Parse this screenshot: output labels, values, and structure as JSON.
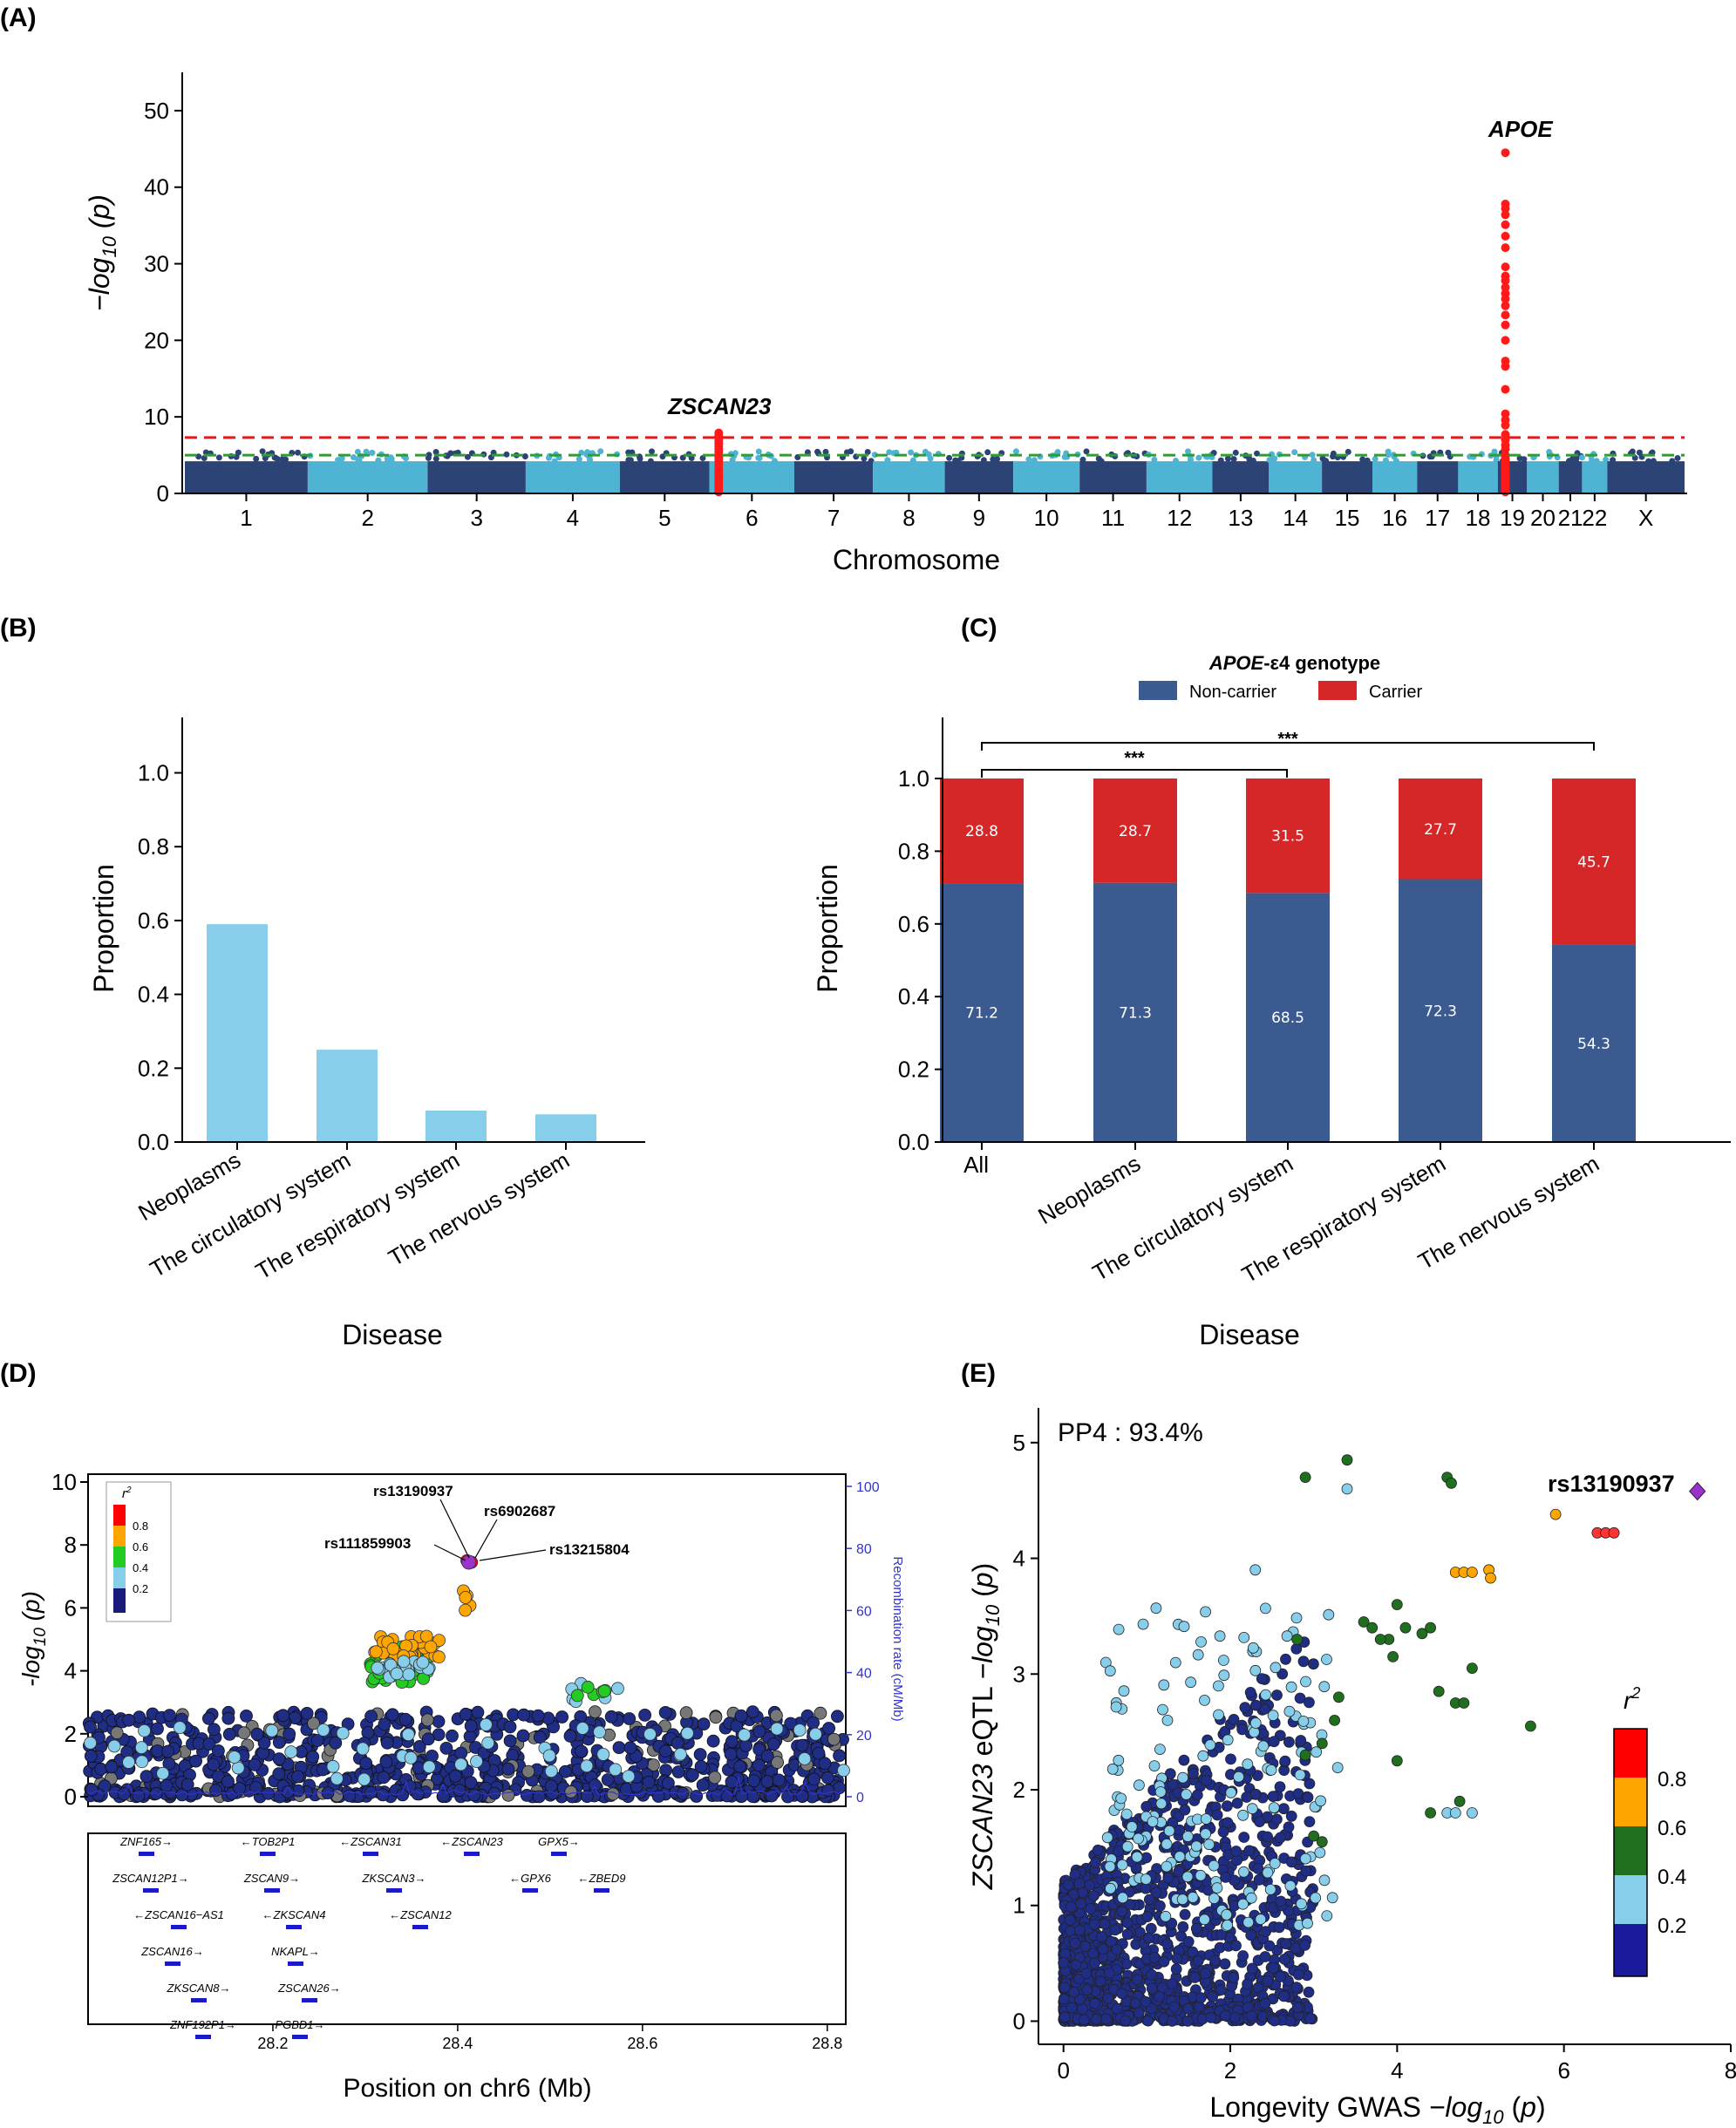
{
  "panels": {
    "A": "(A)",
    "B": "(B)",
    "C": "(C)",
    "D": "(D)",
    "E": "(E)"
  },
  "chart_data": [
    {
      "id": "A",
      "type": "scatter",
      "title": "",
      "xlabel": "Chromosome",
      "ylabel": "−log10 (p)",
      "ylim": [
        0,
        55
      ],
      "yticks": [
        "0",
        "10",
        "20",
        "30",
        "40",
        "50"
      ],
      "categories": [
        "1",
        "2",
        "3",
        "4",
        "5",
        "6",
        "7",
        "8",
        "9",
        "10",
        "11",
        "12",
        "13",
        "14",
        "15",
        "16",
        "17",
        "18",
        "19",
        "20",
        "21",
        "22",
        "X"
      ],
      "thresholds": [
        7.3,
        5
      ],
      "annotations": [
        "ZSCAN23",
        "APOE"
      ],
      "peaks": [
        {
          "chromosome": "6",
          "max_y": 8
        },
        {
          "chromosome": "19",
          "max_y": 44.5
        }
      ]
    },
    {
      "id": "B",
      "type": "bar",
      "xlabel": "Disease",
      "ylabel": "Proportion",
      "ylim": [
        0,
        1.15
      ],
      "yticks": [
        "0.0",
        "0.2",
        "0.4",
        "0.6",
        "0.8",
        "1.0"
      ],
      "categories": [
        "Neoplasms",
        "The circulatory system",
        "The respiratory system",
        "The nervous system"
      ],
      "values": [
        0.59,
        0.25,
        0.085,
        0.075
      ],
      "color": "#87ceeb"
    },
    {
      "id": "C",
      "type": "bar",
      "xlabel": "Disease",
      "ylabel": "Proportion",
      "ylim": [
        0,
        1.0
      ],
      "yticks": [
        "0.0",
        "0.2",
        "0.4",
        "0.6",
        "0.8",
        "1.0"
      ],
      "legend_title_gene": "APOE",
      "legend_title_rest": "-ε4 genotype",
      "categories": [
        "All",
        "Neoplasms",
        "The circulatory system",
        "The respiratory system",
        "The nervous system"
      ],
      "series": [
        {
          "name": "Non-carrier",
          "color": "#3b5a8f",
          "values": [
            71.2,
            71.3,
            68.5,
            72.3,
            54.3
          ],
          "labels": [
            "71.2",
            "71.3",
            "68.5",
            "72.3",
            "54.3"
          ]
        },
        {
          "name": "Carrier",
          "color": "#d62728",
          "values": [
            28.8,
            28.7,
            31.5,
            27.7,
            45.7
          ],
          "labels": [
            "28.8",
            "28.7",
            "31.5",
            "27.7",
            "45.7"
          ]
        }
      ],
      "significance": [
        "***",
        "***"
      ]
    },
    {
      "id": "D",
      "type": "scatter",
      "xlabel": "Position on chr6 (Mb)",
      "ylabel": "-log10 (p)",
      "y2label": "Recombination rate (cM/Mb)",
      "ylim": [
        0,
        10
      ],
      "y2lim": [
        0,
        100
      ],
      "xlim": [
        28.0,
        28.82
      ],
      "yticks": [
        "0",
        "2",
        "4",
        "6",
        "8",
        "10"
      ],
      "y2ticks": [
        "0",
        "20",
        "40",
        "60",
        "80",
        "100"
      ],
      "xticks": [
        "28.2",
        "28.4",
        "28.6",
        "28.8"
      ],
      "legend_title": "r2",
      "legend_ticks": [
        "0.8",
        "0.6",
        "0.4",
        "0.2"
      ],
      "annotations": [
        "rs13190937",
        "rs6902687",
        "rs111859903",
        "rs13215804"
      ],
      "genes": [
        "ZNF165→",
        "←TOB2P1",
        "←ZSCAN31",
        "←ZSCAN23",
        "GPX5→",
        "ZSCAN12P1→",
        "ZSCAN9→",
        "ZKSCAN3→",
        "←GPX6",
        "←ZBED9",
        "←ZSCAN16−AS1",
        "←ZKSCAN4",
        "←ZSCAN12",
        "ZSCAN16→",
        "NKAPL→",
        "ZKSCAN8→",
        "ZSCAN26→",
        "ZNF192P1→",
        "PGBD1→"
      ]
    },
    {
      "id": "E",
      "type": "scatter",
      "xlabel_prefix": "Longevity GWAS ",
      "xlabel_math": "−log10 (p)",
      "ylabel_gene": "ZSCAN23",
      "ylabel_rest": " eQTL −log10 (p)",
      "xlim": [
        -0.3,
        8.0
      ],
      "ylim": [
        -0.2,
        5.3
      ],
      "xticks": [
        "0",
        "2",
        "4",
        "6",
        "8"
      ],
      "yticks": [
        "0",
        "1",
        "2",
        "3",
        "4",
        "5"
      ],
      "annotation": "PP4 : 93.4%",
      "lead_snp": "rs13190937",
      "lead_point": {
        "x": 7.6,
        "y": 4.58
      },
      "legend_title": "r2",
      "legend_ticks": [
        "0.8",
        "0.6",
        "0.4",
        "0.2"
      ]
    }
  ],
  "colors": {
    "navy": "#1f2d84",
    "light_blue": "#87ceeb",
    "bar_blue": "#3b5a8f",
    "red": "#d62728",
    "orange": "#ffa500",
    "green": "#22cc22",
    "dark_green": "#1f6f1f",
    "purple": "#9a32cd",
    "threshold_red": "#e41a1c",
    "threshold_green": "#2ca02c",
    "recomb_blue": "#3333cc"
  }
}
